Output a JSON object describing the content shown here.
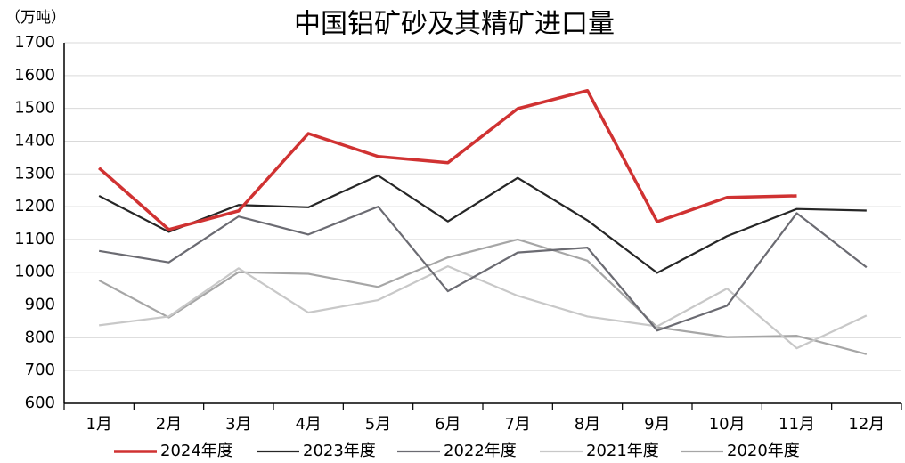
{
  "chart_data": {
    "type": "line",
    "title": "中国铝矿砂及其精矿进口量",
    "y_unit": "（万吨）",
    "categories": [
      "1月",
      "2月",
      "3月",
      "4月",
      "5月",
      "6月",
      "7月",
      "8月",
      "9月",
      "10月",
      "11月",
      "12月"
    ],
    "series": [
      {
        "name": "2024年度",
        "color": "#d03232",
        "values": [
          1318,
          1130,
          1187,
          1423,
          1353,
          1334,
          1499,
          1554,
          1154,
          1228,
          1233,
          null
        ]
      },
      {
        "name": "2023年度",
        "color": "#262626",
        "values": [
          1233,
          1123,
          1205,
          1198,
          1295,
          1155,
          1288,
          1158,
          998,
          1110,
          1193,
          1188
        ]
      },
      {
        "name": "2022年度",
        "color": "#6b6b72",
        "values": [
          1065,
          1030,
          1170,
          1115,
          1200,
          942,
          1060,
          1075,
          822,
          898,
          1180,
          1015
        ]
      },
      {
        "name": "2021年度",
        "color": "#c8c8c8",
        "values": [
          838,
          865,
          1012,
          877,
          915,
          1018,
          928,
          865,
          835,
          950,
          768,
          868
        ]
      },
      {
        "name": "2020年度",
        "color": "#a6a6a6",
        "values": [
          975,
          862,
          1000,
          995,
          955,
          1045,
          1100,
          1035,
          832,
          802,
          806,
          750
        ]
      }
    ],
    "ylim": [
      600,
      1700
    ],
    "yticks": [
      600,
      700,
      800,
      900,
      1000,
      1100,
      1200,
      1300,
      1400,
      1500,
      1600,
      1700
    ],
    "grid": true,
    "legend": "bottom"
  }
}
